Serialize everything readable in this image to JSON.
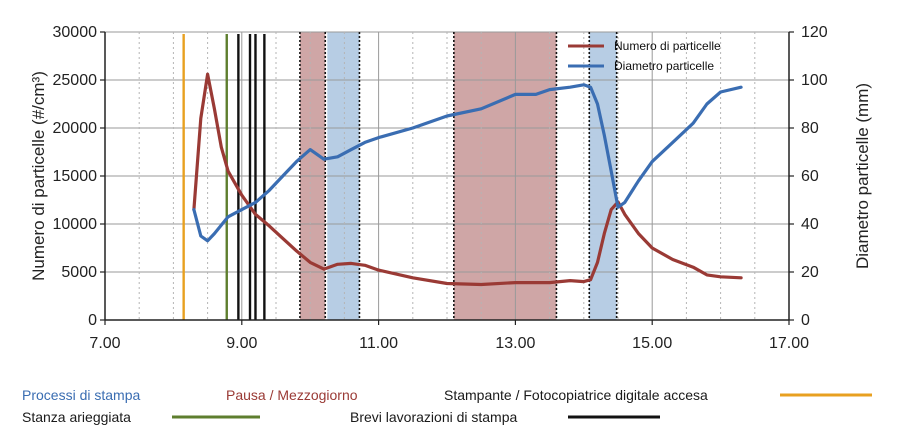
{
  "chart_data": {
    "type": "line",
    "x_axis": {
      "range": [
        7,
        17
      ],
      "ticks": [
        7,
        9,
        11,
        13,
        15,
        17
      ],
      "tick_labels": [
        "7.00",
        "9.00",
        "11.00",
        "13.00",
        "15.00",
        "17.00"
      ]
    },
    "y_axis_left": {
      "label": "Numero di particelle (#/cm³)",
      "range": [
        0,
        30000
      ],
      "ticks": [
        0,
        5000,
        10000,
        15000,
        20000,
        25000,
        30000
      ],
      "tick_labels": [
        "0",
        "5000",
        "10000",
        "15000",
        "20000",
        "25000",
        "30000"
      ]
    },
    "y_axis_right": {
      "label": "Diametro particelle (mm)",
      "range": [
        0,
        120
      ],
      "ticks": [
        0,
        20,
        40,
        60,
        80,
        100,
        120
      ],
      "tick_labels": [
        "0",
        "20",
        "40",
        "60",
        "80",
        "100",
        "120"
      ]
    },
    "grid": true,
    "legend_position": "top-right",
    "series": [
      {
        "name": "Numero di particelle",
        "axis": "left",
        "color": "#9a3a35",
        "x": [
          8.3,
          8.4,
          8.5,
          8.6,
          8.7,
          8.8,
          9.0,
          9.2,
          9.4,
          9.6,
          9.8,
          10.0,
          10.2,
          10.4,
          10.6,
          10.8,
          11.0,
          11.5,
          12.0,
          12.5,
          13.0,
          13.5,
          13.8,
          14.0,
          14.1,
          14.2,
          14.3,
          14.4,
          14.5,
          14.6,
          14.8,
          15.0,
          15.3,
          15.6,
          15.8,
          16.0,
          16.3
        ],
        "y": [
          11500,
          21000,
          25600,
          22000,
          18000,
          15500,
          13000,
          11000,
          9800,
          8500,
          7200,
          6000,
          5300,
          5800,
          5900,
          5700,
          5200,
          4400,
          3800,
          3700,
          3900,
          3900,
          4100,
          4000,
          4200,
          6000,
          9000,
          11500,
          12300,
          11000,
          9000,
          7500,
          6300,
          5500,
          4700,
          4500,
          4400
        ]
      },
      {
        "name": "Diametro particelle",
        "axis": "right",
        "color": "#3a6db2",
        "x": [
          8.3,
          8.4,
          8.5,
          8.6,
          8.8,
          9.0,
          9.2,
          9.4,
          9.6,
          9.8,
          10.0,
          10.2,
          10.4,
          10.6,
          10.8,
          11.0,
          11.5,
          12.0,
          12.5,
          13.0,
          13.3,
          13.5,
          13.8,
          14.0,
          14.1,
          14.2,
          14.3,
          14.4,
          14.5,
          14.6,
          14.8,
          15.0,
          15.3,
          15.6,
          15.8,
          16.0,
          16.3
        ],
        "y": [
          46,
          35,
          33,
          36,
          43,
          46,
          49,
          54,
          60,
          66,
          71,
          67,
          68,
          71,
          74,
          76,
          80,
          85,
          88,
          94,
          94,
          96,
          97,
          98,
          97,
          90,
          77,
          62,
          47,
          49,
          58,
          66,
          74,
          82,
          90,
          95,
          97
        ]
      }
    ],
    "shaded_regions": [
      {
        "type": "Pausa / Mezzogiorno",
        "x0": 9.85,
        "x1": 10.22,
        "color": "#cfa6a6"
      },
      {
        "type": "Processi di stampa",
        "x0": 10.25,
        "x1": 10.72,
        "color": "#b7cde4"
      },
      {
        "type": "Pausa / Mezzogiorno",
        "x0": 12.1,
        "x1": 13.6,
        "color": "#cfa6a6"
      },
      {
        "type": "Processi di stampa",
        "x0": 14.08,
        "x1": 14.48,
        "color": "#b7cde4"
      }
    ],
    "event_lines": [
      {
        "type": "Stampante / Fotocopiatrice digitale accesa",
        "x": 8.15,
        "color": "#e8a020",
        "style": "solid"
      },
      {
        "type": "Stanza arieggiata",
        "x": 8.78,
        "color": "#5e7e2e",
        "style": "solid"
      },
      {
        "type": "Brevi lavorazioni di stampa",
        "x": 8.95,
        "color": "#111111",
        "style": "solid"
      },
      {
        "type": "Brevi lavorazioni di stampa",
        "x": 9.12,
        "color": "#111111",
        "style": "solid"
      },
      {
        "type": "Brevi lavorazioni di stampa",
        "x": 9.2,
        "color": "#111111",
        "style": "solid"
      },
      {
        "type": "Brevi lavorazioni di stampa",
        "x": 9.33,
        "color": "#111111",
        "style": "solid"
      },
      {
        "type": "region-border",
        "x": 9.85,
        "color": "#111111",
        "style": "dotted"
      },
      {
        "type": "region-border",
        "x": 10.22,
        "color": "#111111",
        "style": "dotted"
      },
      {
        "type": "region-border",
        "x": 10.72,
        "color": "#111111",
        "style": "dotted"
      },
      {
        "type": "region-border",
        "x": 12.1,
        "color": "#111111",
        "style": "dotted"
      },
      {
        "type": "region-border",
        "x": 13.6,
        "color": "#111111",
        "style": "dotted"
      },
      {
        "type": "region-border",
        "x": 14.08,
        "color": "#111111",
        "style": "dotted"
      },
      {
        "type": "region-border",
        "x": 14.48,
        "color": "#111111",
        "style": "dotted"
      }
    ]
  },
  "legend_bottom": [
    {
      "label": "Processi di stampa",
      "color": "#3a6db2",
      "swatch": false
    },
    {
      "label": "Pausa / Mezzogiorno",
      "color": "#9a3a35",
      "swatch": false
    },
    {
      "label": "Stampante / Fotocopiatrice digitale accesa",
      "color": "#1a1a1a",
      "swatch": true,
      "swatch_color": "#e8a020"
    },
    {
      "label": "Stanza arieggiata",
      "color": "#1a1a1a",
      "swatch": true,
      "swatch_color": "#5e7e2e"
    },
    {
      "label": "Brevi lavorazioni di stampa",
      "color": "#1a1a1a",
      "swatch": true,
      "swatch_color": "#111111"
    }
  ]
}
